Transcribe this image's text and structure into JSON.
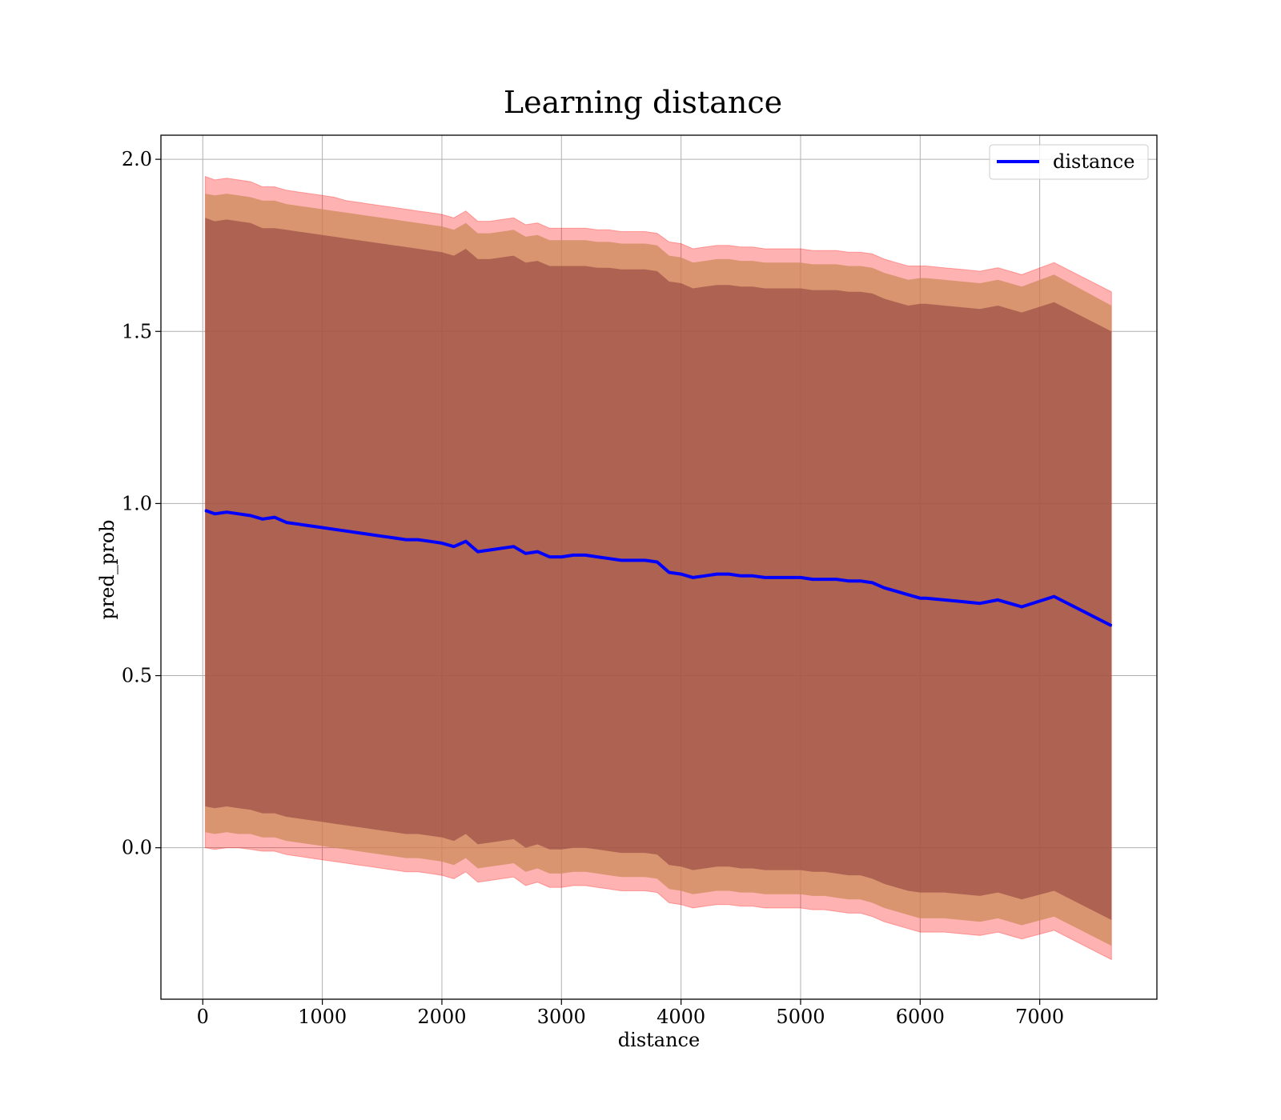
{
  "chart_data": {
    "type": "line",
    "title": "Learning distance",
    "xlabel": "distance",
    "ylabel": "pred_prob",
    "xlim": [
      -350,
      7980
    ],
    "ylim": [
      -0.44,
      2.07
    ],
    "xticks": [
      0,
      1000,
      2000,
      3000,
      4000,
      5000,
      6000,
      7000
    ],
    "xtick_labels": [
      "0",
      "1000",
      "2000",
      "3000",
      "4000",
      "5000",
      "6000",
      "7000"
    ],
    "yticks": [
      0.0,
      0.5,
      1.0,
      1.5,
      2.0
    ],
    "ytick_labels": [
      "0.0",
      "0.5",
      "1.0",
      "1.5",
      "2.0"
    ],
    "grid": true,
    "legend": {
      "position": "top-right",
      "entries": [
        "distance"
      ]
    },
    "colors": {
      "line": "#0000ff",
      "band": "#ff0000",
      "inner_band": "#8b3a3a",
      "middle_band": "#cc8a5a",
      "grid": "#b0b0b0"
    },
    "series": [
      {
        "name": "distance",
        "x": [
          20,
          100,
          200,
          300,
          400,
          500,
          600,
          700,
          800,
          900,
          1000,
          1100,
          1200,
          1300,
          1400,
          1500,
          1600,
          1700,
          1800,
          1900,
          2000,
          2100,
          2200,
          2300,
          2400,
          2500,
          2600,
          2700,
          2800,
          2900,
          3000,
          3100,
          3200,
          3300,
          3400,
          3500,
          3600,
          3700,
          3800,
          3900,
          4000,
          4100,
          4200,
          4300,
          4400,
          4500,
          4600,
          4700,
          4800,
          4900,
          5000,
          5100,
          5200,
          5300,
          5400,
          5500,
          5600,
          5700,
          5800,
          5900,
          6000,
          6050,
          6200,
          6350,
          6500,
          6650,
          6850,
          7120,
          7600
        ],
        "values": [
          0.98,
          0.97,
          0.975,
          0.97,
          0.965,
          0.955,
          0.96,
          0.945,
          0.94,
          0.935,
          0.93,
          0.925,
          0.92,
          0.915,
          0.91,
          0.905,
          0.9,
          0.895,
          0.895,
          0.89,
          0.885,
          0.875,
          0.89,
          0.86,
          0.865,
          0.87,
          0.875,
          0.855,
          0.86,
          0.845,
          0.845,
          0.85,
          0.85,
          0.845,
          0.84,
          0.835,
          0.835,
          0.835,
          0.83,
          0.8,
          0.795,
          0.785,
          0.79,
          0.795,
          0.795,
          0.79,
          0.79,
          0.785,
          0.785,
          0.785,
          0.785,
          0.78,
          0.78,
          0.78,
          0.775,
          0.775,
          0.77,
          0.755,
          0.745,
          0.735,
          0.725,
          0.725,
          0.72,
          0.715,
          0.71,
          0.72,
          0.7,
          0.73,
          0.645
        ],
        "band_outer_upper": [
          1.95,
          1.94,
          1.945,
          1.94,
          1.935,
          1.92,
          1.92,
          1.91,
          1.905,
          1.9,
          1.895,
          1.89,
          1.88,
          1.875,
          1.87,
          1.865,
          1.86,
          1.855,
          1.85,
          1.845,
          1.84,
          1.83,
          1.85,
          1.82,
          1.82,
          1.825,
          1.83,
          1.81,
          1.815,
          1.8,
          1.8,
          1.8,
          1.8,
          1.795,
          1.795,
          1.79,
          1.79,
          1.79,
          1.785,
          1.76,
          1.755,
          1.74,
          1.745,
          1.75,
          1.75,
          1.745,
          1.745,
          1.74,
          1.74,
          1.74,
          1.74,
          1.735,
          1.735,
          1.735,
          1.73,
          1.73,
          1.725,
          1.71,
          1.7,
          1.69,
          1.69,
          1.69,
          1.685,
          1.68,
          1.675,
          1.685,
          1.665,
          1.7,
          1.615
        ],
        "band_outer_lower": [
          0.0,
          -0.005,
          0.0,
          0.0,
          -0.005,
          -0.01,
          -0.01,
          -0.02,
          -0.025,
          -0.03,
          -0.035,
          -0.04,
          -0.045,
          -0.05,
          -0.055,
          -0.06,
          -0.065,
          -0.07,
          -0.07,
          -0.075,
          -0.08,
          -0.09,
          -0.07,
          -0.1,
          -0.095,
          -0.09,
          -0.085,
          -0.11,
          -0.1,
          -0.115,
          -0.115,
          -0.11,
          -0.11,
          -0.115,
          -0.12,
          -0.125,
          -0.125,
          -0.125,
          -0.13,
          -0.16,
          -0.165,
          -0.175,
          -0.17,
          -0.165,
          -0.165,
          -0.17,
          -0.17,
          -0.175,
          -0.175,
          -0.175,
          -0.175,
          -0.18,
          -0.18,
          -0.185,
          -0.19,
          -0.19,
          -0.2,
          -0.215,
          -0.225,
          -0.235,
          -0.245,
          -0.245,
          -0.245,
          -0.25,
          -0.255,
          -0.245,
          -0.265,
          -0.24,
          -0.325
        ],
        "band_middle_upper": [
          1.9,
          1.895,
          1.9,
          1.895,
          1.89,
          1.88,
          1.88,
          1.87,
          1.865,
          1.86,
          1.855,
          1.85,
          1.845,
          1.84,
          1.835,
          1.83,
          1.825,
          1.82,
          1.815,
          1.81,
          1.805,
          1.795,
          1.815,
          1.785,
          1.785,
          1.79,
          1.795,
          1.775,
          1.78,
          1.765,
          1.765,
          1.765,
          1.765,
          1.76,
          1.76,
          1.755,
          1.755,
          1.755,
          1.75,
          1.72,
          1.715,
          1.7,
          1.705,
          1.71,
          1.71,
          1.705,
          1.705,
          1.7,
          1.7,
          1.7,
          1.7,
          1.695,
          1.695,
          1.695,
          1.69,
          1.69,
          1.685,
          1.67,
          1.66,
          1.65,
          1.655,
          1.655,
          1.65,
          1.645,
          1.64,
          1.65,
          1.63,
          1.665,
          1.575
        ],
        "band_middle_lower": [
          0.045,
          0.04,
          0.045,
          0.04,
          0.04,
          0.03,
          0.03,
          0.02,
          0.015,
          0.01,
          0.005,
          0.0,
          -0.005,
          -0.01,
          -0.015,
          -0.02,
          -0.025,
          -0.03,
          -0.03,
          -0.035,
          -0.04,
          -0.05,
          -0.03,
          -0.06,
          -0.055,
          -0.05,
          -0.045,
          -0.07,
          -0.06,
          -0.075,
          -0.075,
          -0.07,
          -0.07,
          -0.075,
          -0.08,
          -0.085,
          -0.085,
          -0.085,
          -0.09,
          -0.12,
          -0.125,
          -0.135,
          -0.13,
          -0.125,
          -0.125,
          -0.13,
          -0.13,
          -0.135,
          -0.135,
          -0.135,
          -0.135,
          -0.14,
          -0.14,
          -0.145,
          -0.15,
          -0.15,
          -0.16,
          -0.175,
          -0.185,
          -0.195,
          -0.205,
          -0.205,
          -0.205,
          -0.21,
          -0.215,
          -0.205,
          -0.225,
          -0.2,
          -0.285
        ],
        "band_inner_upper": [
          1.83,
          1.82,
          1.825,
          1.82,
          1.815,
          1.8,
          1.8,
          1.795,
          1.79,
          1.785,
          1.78,
          1.775,
          1.77,
          1.765,
          1.76,
          1.755,
          1.75,
          1.745,
          1.74,
          1.735,
          1.73,
          1.72,
          1.74,
          1.71,
          1.71,
          1.715,
          1.72,
          1.7,
          1.705,
          1.69,
          1.69,
          1.69,
          1.69,
          1.685,
          1.685,
          1.68,
          1.68,
          1.68,
          1.675,
          1.645,
          1.64,
          1.625,
          1.63,
          1.635,
          1.635,
          1.63,
          1.63,
          1.625,
          1.625,
          1.625,
          1.625,
          1.62,
          1.62,
          1.62,
          1.615,
          1.615,
          1.61,
          1.595,
          1.585,
          1.575,
          1.58,
          1.58,
          1.575,
          1.57,
          1.565,
          1.575,
          1.555,
          1.585,
          1.5
        ],
        "band_inner_lower": [
          0.12,
          0.115,
          0.12,
          0.115,
          0.11,
          0.1,
          0.1,
          0.09,
          0.085,
          0.08,
          0.075,
          0.07,
          0.065,
          0.06,
          0.055,
          0.05,
          0.045,
          0.04,
          0.04,
          0.035,
          0.03,
          0.02,
          0.04,
          0.01,
          0.015,
          0.02,
          0.025,
          0.0,
          0.01,
          -0.005,
          -0.005,
          0.0,
          0.0,
          -0.005,
          -0.01,
          -0.015,
          -0.015,
          -0.015,
          -0.02,
          -0.05,
          -0.055,
          -0.065,
          -0.06,
          -0.055,
          -0.055,
          -0.06,
          -0.06,
          -0.065,
          -0.065,
          -0.065,
          -0.065,
          -0.07,
          -0.07,
          -0.075,
          -0.08,
          -0.08,
          -0.09,
          -0.105,
          -0.115,
          -0.125,
          -0.13,
          -0.13,
          -0.13,
          -0.135,
          -0.14,
          -0.13,
          -0.15,
          -0.125,
          -0.21
        ]
      }
    ]
  }
}
